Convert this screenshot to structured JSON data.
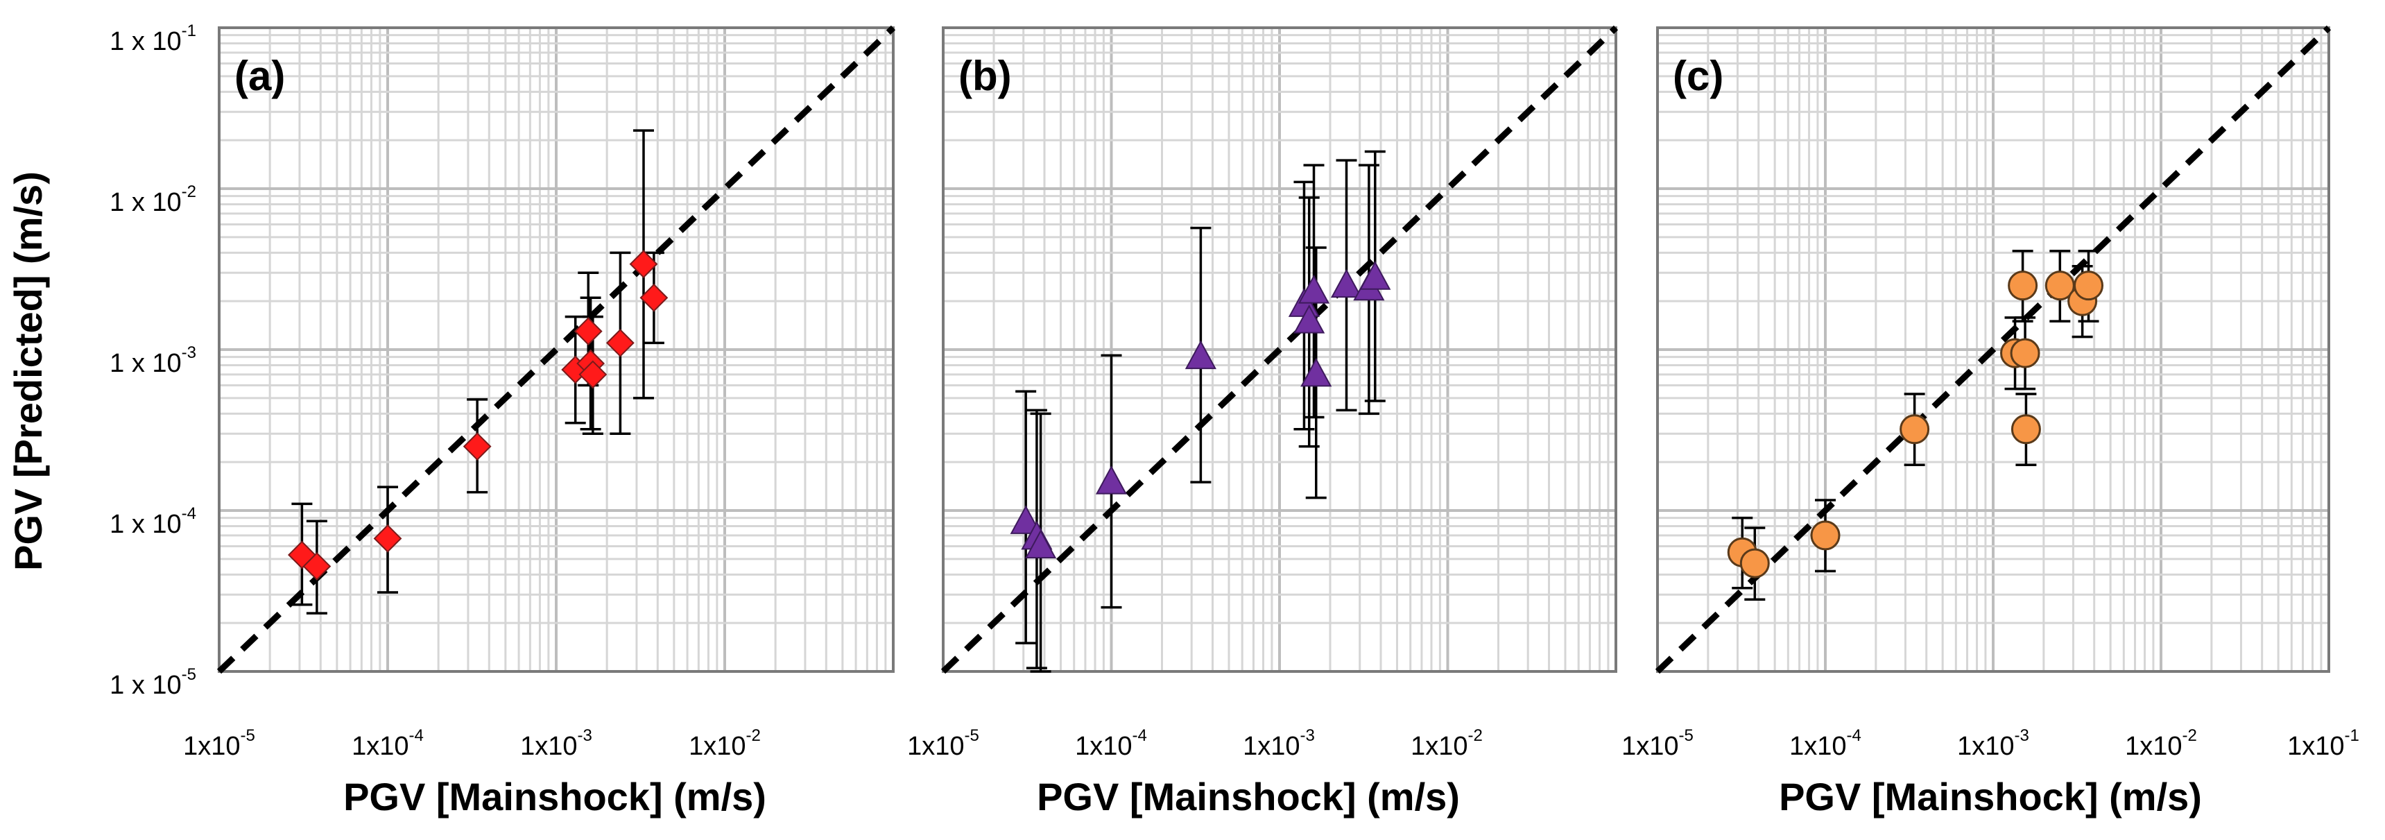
{
  "figure": {
    "y_axis_title": "PGV [Predicted] (m/s)",
    "x_axis_title": "PGV [Mainshock] (m/s)"
  },
  "chart_data": [
    {
      "type": "scatter",
      "panel_label": "(a)",
      "xlabel": "PGV [Mainshock] (m/s)",
      "ylabel": "PGV [Predicted] (m/s)",
      "xscale": "log",
      "yscale": "log",
      "xlim": [
        1e-05,
        0.1
      ],
      "ylim": [
        1e-05,
        0.1
      ],
      "x_tick_labels": [
        {
          "base": "1x10",
          "exp": "-5"
        },
        {
          "base": "1x10",
          "exp": "-4"
        },
        {
          "base": "1x10",
          "exp": "-3"
        },
        {
          "base": "1x10",
          "exp": "-2"
        }
      ],
      "y_tick_labels": [
        {
          "base": "1 x 10",
          "exp": "-5"
        },
        {
          "base": "1 x 10",
          "exp": "-4"
        },
        {
          "base": "1 x 10",
          "exp": "-3"
        },
        {
          "base": "1 x 10",
          "exp": "-2"
        },
        {
          "base": "1 x 10",
          "exp": "-1"
        }
      ],
      "reference_line": "1:1 (dashed)",
      "marker": "diamond",
      "color": "#ff1a1a",
      "points": [
        {
          "x": 3.1e-05,
          "y": 5.3e-05,
          "y_low": 2.6e-05,
          "y_high": 0.00011
        },
        {
          "x": 3.8e-05,
          "y": 4.5e-05,
          "y_low": 2.3e-05,
          "y_high": 8.6e-05
        },
        {
          "x": 0.0001,
          "y": 6.7e-05,
          "y_low": 3.1e-05,
          "y_high": 0.00014
        },
        {
          "x": 0.00034,
          "y": 0.00025,
          "y_low": 0.00013,
          "y_high": 0.00049
        },
        {
          "x": 0.0013,
          "y": 0.00075,
          "y_low": 0.00035,
          "y_high": 0.0016
        },
        {
          "x": 0.00155,
          "y": 0.0013,
          "y_low": 0.0006,
          "y_high": 0.003
        },
        {
          "x": 0.0016,
          "y": 0.00082,
          "y_low": 0.00032,
          "y_high": 0.0021
        },
        {
          "x": 0.00165,
          "y": 0.0007,
          "y_low": 0.0003,
          "y_high": 0.0016
        },
        {
          "x": 0.0024,
          "y": 0.0011,
          "y_low": 0.0003,
          "y_high": 0.004
        },
        {
          "x": 0.0033,
          "y": 0.0034,
          "y_low": 0.0005,
          "y_high": 0.023
        },
        {
          "x": 0.0038,
          "y": 0.0021,
          "y_low": 0.0011,
          "y_high": 0.004
        }
      ]
    },
    {
      "type": "scatter",
      "panel_label": "(b)",
      "xlabel": "PGV [Mainshock] (m/s)",
      "ylabel": "PGV [Predicted] (m/s)",
      "xscale": "log",
      "yscale": "log",
      "xlim": [
        1e-05,
        0.1
      ],
      "ylim": [
        1e-05,
        0.1
      ],
      "x_tick_labels": [
        {
          "base": "1x10",
          "exp": "-5"
        },
        {
          "base": "1x10",
          "exp": "-4"
        },
        {
          "base": "1x10",
          "exp": "-3"
        },
        {
          "base": "1x10",
          "exp": "-2"
        }
      ],
      "reference_line": "1:1 (dashed)",
      "marker": "triangle",
      "color": "#7030a0",
      "points": [
        {
          "x": 3.1e-05,
          "y": 8.5e-05,
          "y_low": 1.5e-05,
          "y_high": 0.00055
        },
        {
          "x": 3.6e-05,
          "y": 6.8e-05,
          "y_low": 1.05e-05,
          "y_high": 0.00042
        },
        {
          "x": 3.8e-05,
          "y": 6e-05,
          "y_low": 1e-05,
          "y_high": 0.0004
        },
        {
          "x": 0.0001,
          "y": 0.00015,
          "y_low": 2.5e-05,
          "y_high": 0.00092
        },
        {
          "x": 0.00034,
          "y": 0.0009,
          "y_low": 0.00015,
          "y_high": 0.0057
        },
        {
          "x": 0.0014,
          "y": 0.0019,
          "y_low": 0.00032,
          "y_high": 0.011
        },
        {
          "x": 0.0015,
          "y": 0.0015,
          "y_low": 0.00025,
          "y_high": 0.0088
        },
        {
          "x": 0.0016,
          "y": 0.0023,
          "y_low": 0.00038,
          "y_high": 0.014
        },
        {
          "x": 0.00165,
          "y": 0.0007,
          "y_low": 0.00012,
          "y_high": 0.0043
        },
        {
          "x": 0.0025,
          "y": 0.0025,
          "y_low": 0.00042,
          "y_high": 0.015
        },
        {
          "x": 0.0034,
          "y": 0.0024,
          "y_low": 0.0004,
          "y_high": 0.014
        },
        {
          "x": 0.0037,
          "y": 0.0028,
          "y_low": 0.00048,
          "y_high": 0.017
        }
      ]
    },
    {
      "type": "scatter",
      "panel_label": "(c)",
      "xlabel": "PGV [Mainshock] (m/s)",
      "ylabel": "PGV [Predicted] (m/s)",
      "xscale": "log",
      "yscale": "log",
      "xlim": [
        1e-05,
        0.1
      ],
      "ylim": [
        1e-05,
        0.1
      ],
      "x_tick_labels": [
        {
          "base": "1x10",
          "exp": "-5"
        },
        {
          "base": "1x10",
          "exp": "-4"
        },
        {
          "base": "1x10",
          "exp": "-3"
        },
        {
          "base": "1x10",
          "exp": "-2"
        },
        {
          "base": "1x10",
          "exp": "-1"
        }
      ],
      "reference_line": "1:1 (dashed)",
      "marker": "circle",
      "color": "#f79646",
      "points": [
        {
          "x": 3.2e-05,
          "y": 5.5e-05,
          "y_low": 3.3e-05,
          "y_high": 9e-05
        },
        {
          "x": 3.8e-05,
          "y": 4.7e-05,
          "y_low": 2.8e-05,
          "y_high": 7.8e-05
        },
        {
          "x": 0.0001,
          "y": 7e-05,
          "y_low": 4.2e-05,
          "y_high": 0.000116
        },
        {
          "x": 0.00034,
          "y": 0.00032,
          "y_low": 0.000192,
          "y_high": 0.00053
        },
        {
          "x": 0.00135,
          "y": 0.00095,
          "y_low": 0.00057,
          "y_high": 0.00158
        },
        {
          "x": 0.0015,
          "y": 0.0025,
          "y_low": 0.0015,
          "y_high": 0.0041
        },
        {
          "x": 0.00155,
          "y": 0.00095,
          "y_low": 0.00057,
          "y_high": 0.00158
        },
        {
          "x": 0.00157,
          "y": 0.00032,
          "y_low": 0.000192,
          "y_high": 0.00053
        },
        {
          "x": 0.0025,
          "y": 0.0025,
          "y_low": 0.0015,
          "y_high": 0.0041
        },
        {
          "x": 0.0034,
          "y": 0.002,
          "y_low": 0.0012,
          "y_high": 0.0033
        },
        {
          "x": 0.0037,
          "y": 0.0025,
          "y_low": 0.0015,
          "y_high": 0.0041
        }
      ]
    }
  ]
}
